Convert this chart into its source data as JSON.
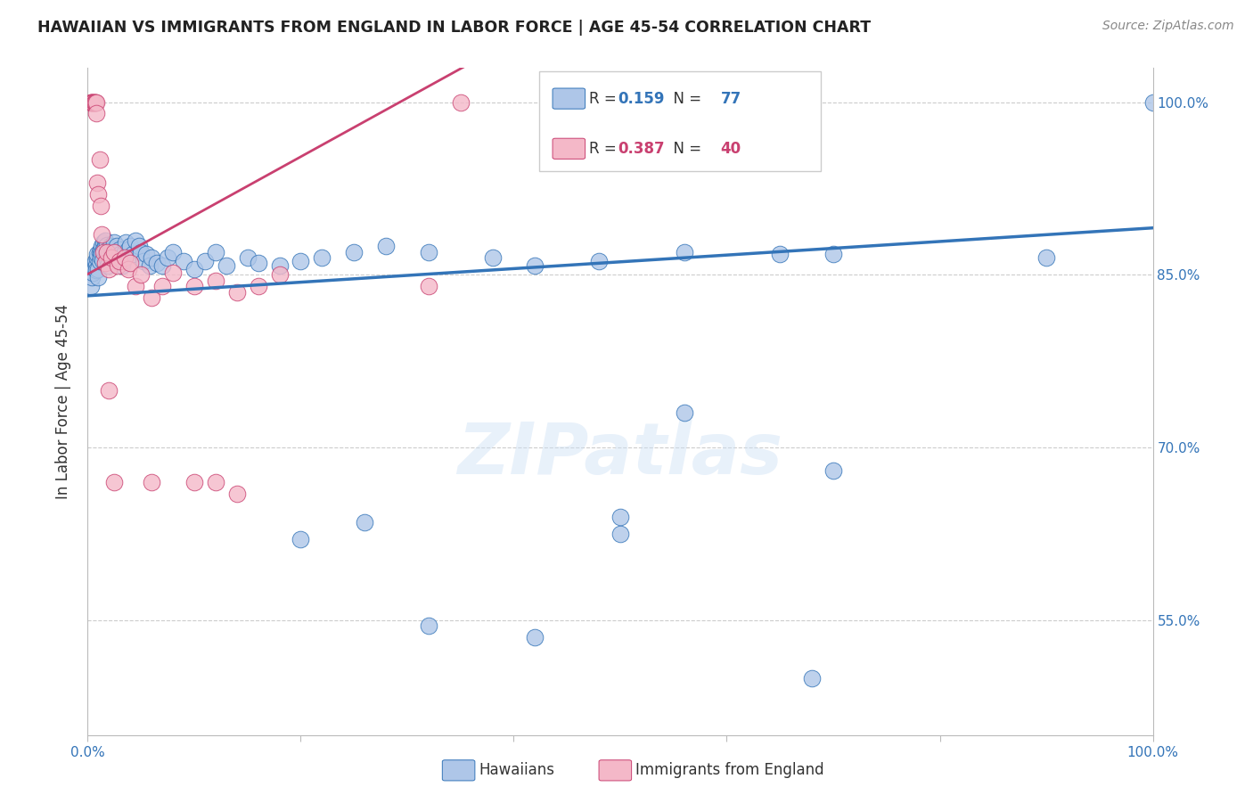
{
  "title": "HAWAIIAN VS IMMIGRANTS FROM ENGLAND IN LABOR FORCE | AGE 45-54 CORRELATION CHART",
  "source": "Source: ZipAtlas.com",
  "ylabel": "In Labor Force | Age 45-54",
  "r_hawaiians": 0.159,
  "n_hawaiians": 77,
  "r_england": 0.387,
  "n_england": 40,
  "x_min": 0.0,
  "x_max": 1.0,
  "y_min": 0.45,
  "y_max": 1.03,
  "yticks": [
    0.55,
    0.7,
    0.85,
    1.0
  ],
  "ytick_labels": [
    "55.0%",
    "70.0%",
    "85.0%",
    "100.0%"
  ],
  "xticks": [
    0.0,
    0.2,
    0.4,
    0.6,
    0.8,
    1.0
  ],
  "xtick_labels": [
    "0.0%",
    "",
    "",
    "",
    "",
    "100.0%"
  ],
  "color_hawaiians": "#aec6e8",
  "color_england": "#f4b8c8",
  "line_color_hawaiians": "#3374B8",
  "line_color_england": "#C94070",
  "background_color": "#ffffff",
  "grid_color": "#cccccc",
  "hawaiians_x": [
    0.003,
    0.004,
    0.005,
    0.006,
    0.007,
    0.007,
    0.008,
    0.008,
    0.009,
    0.009,
    0.01,
    0.01,
    0.011,
    0.011,
    0.012,
    0.012,
    0.013,
    0.013,
    0.014,
    0.015,
    0.015,
    0.016,
    0.016,
    0.017,
    0.018,
    0.018,
    0.019,
    0.02,
    0.021,
    0.022,
    0.023,
    0.024,
    0.025,
    0.026,
    0.027,
    0.028,
    0.03,
    0.031,
    0.032,
    0.033,
    0.035,
    0.036,
    0.038,
    0.04,
    0.042,
    0.045,
    0.048,
    0.05,
    0.052,
    0.055,
    0.058,
    0.06,
    0.065,
    0.07,
    0.075,
    0.08,
    0.09,
    0.1,
    0.11,
    0.12,
    0.13,
    0.15,
    0.16,
    0.18,
    0.2,
    0.22,
    0.25,
    0.28,
    0.32,
    0.38,
    0.42,
    0.48,
    0.56,
    0.65,
    0.7,
    0.9,
    1.0
  ],
  "hawaiians_y": [
    0.84,
    0.848,
    0.852,
    0.856,
    0.86,
    0.862,
    0.858,
    0.854,
    0.865,
    0.868,
    0.855,
    0.848,
    0.87,
    0.862,
    0.872,
    0.866,
    0.875,
    0.869,
    0.863,
    0.878,
    0.872,
    0.88,
    0.874,
    0.868,
    0.876,
    0.864,
    0.858,
    0.87,
    0.875,
    0.868,
    0.872,
    0.866,
    0.878,
    0.87,
    0.875,
    0.865,
    0.872,
    0.868,
    0.858,
    0.862,
    0.87,
    0.878,
    0.872,
    0.875,
    0.868,
    0.88,
    0.875,
    0.87,
    0.862,
    0.868,
    0.858,
    0.865,
    0.86,
    0.858,
    0.865,
    0.87,
    0.862,
    0.855,
    0.862,
    0.87,
    0.858,
    0.865,
    0.86,
    0.858,
    0.862,
    0.865,
    0.87,
    0.875,
    0.87,
    0.865,
    0.858,
    0.862,
    0.87,
    0.868,
    0.868,
    0.865,
    1.0
  ],
  "hawaiians_x_outliers": [
    0.2,
    0.26,
    0.32,
    0.42,
    0.5,
    0.5,
    0.56,
    0.68,
    0.7
  ],
  "hawaiians_y_outliers": [
    0.62,
    0.635,
    0.545,
    0.535,
    0.625,
    0.64,
    0.73,
    0.5,
    0.68
  ],
  "england_x": [
    0.003,
    0.003,
    0.004,
    0.004,
    0.005,
    0.005,
    0.006,
    0.006,
    0.007,
    0.007,
    0.008,
    0.008,
    0.009,
    0.01,
    0.011,
    0.012,
    0.013,
    0.015,
    0.016,
    0.018,
    0.02,
    0.022,
    0.025,
    0.028,
    0.03,
    0.035,
    0.038,
    0.04,
    0.045,
    0.05,
    0.06,
    0.07,
    0.08,
    0.1,
    0.12,
    0.14,
    0.16,
    0.18,
    0.32,
    0.35
  ],
  "england_y": [
    1.0,
    1.0,
    1.0,
    1.0,
    1.0,
    1.0,
    1.0,
    1.0,
    1.0,
    1.0,
    1.0,
    0.99,
    0.93,
    0.92,
    0.95,
    0.91,
    0.885,
    0.87,
    0.86,
    0.87,
    0.855,
    0.865,
    0.87,
    0.858,
    0.862,
    0.865,
    0.855,
    0.86,
    0.84,
    0.85,
    0.83,
    0.84,
    0.852,
    0.84,
    0.845,
    0.835,
    0.84,
    0.85,
    0.84,
    1.0
  ],
  "england_x_outliers": [
    0.02,
    0.025,
    0.06,
    0.1,
    0.12,
    0.14
  ],
  "england_y_outliers": [
    0.75,
    0.67,
    0.67,
    0.67,
    0.67,
    0.66
  ]
}
